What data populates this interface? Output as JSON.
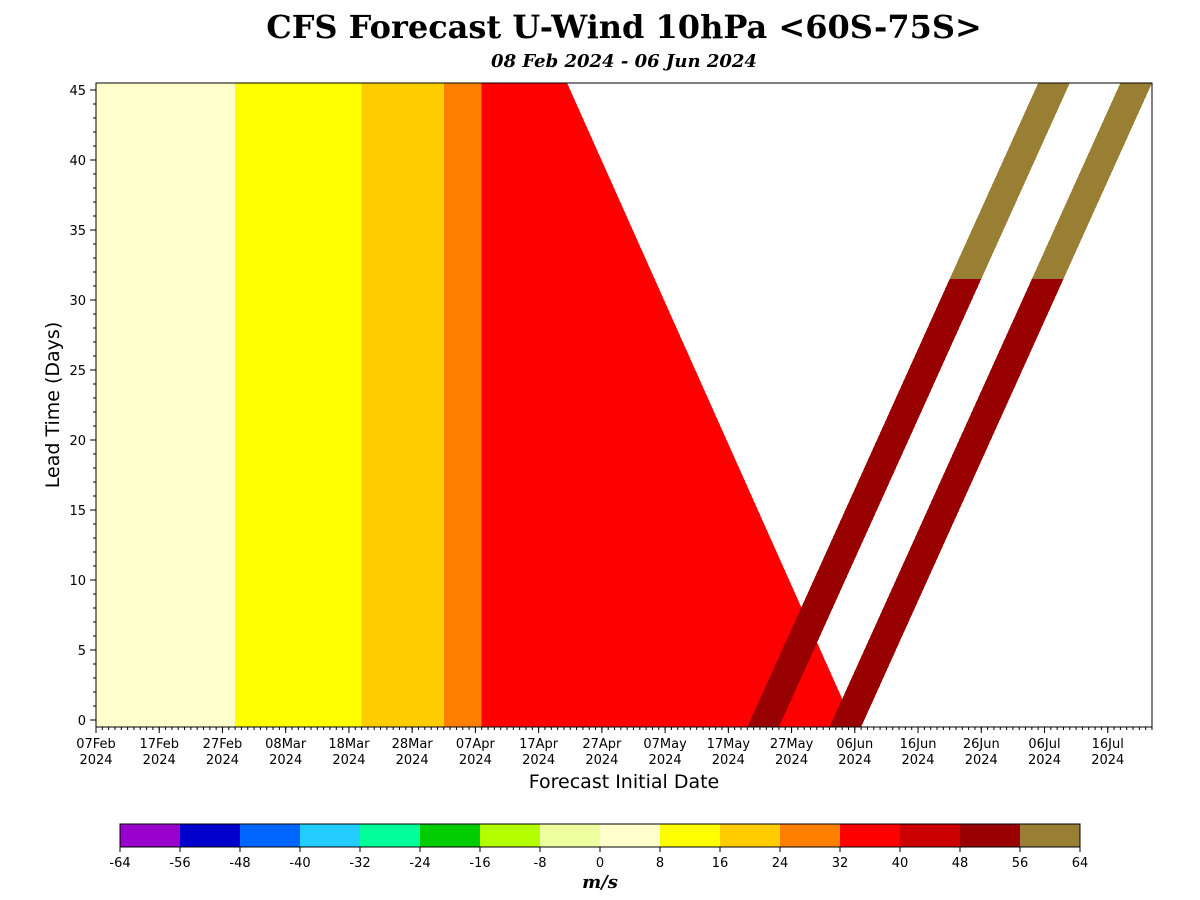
{
  "chart_data": {
    "type": "heatmap",
    "title": "CFS Forecast U-Wind 10hPa <60S-75S>",
    "subtitle": "08 Feb 2024 - 06 Jun 2024",
    "xlabel": "Forecast Initial Date",
    "ylabel": "Lead Time (Days)",
    "x_ticks": [
      {
        "date": "2024-02-07",
        "label": "07Feb\n2024"
      },
      {
        "date": "2024-02-17",
        "label": "17Feb\n2024"
      },
      {
        "date": "2024-02-27",
        "label": "27Feb\n2024"
      },
      {
        "date": "2024-03-08",
        "label": "08Mar\n2024"
      },
      {
        "date": "2024-03-18",
        "label": "18Mar\n2024"
      },
      {
        "date": "2024-03-28",
        "label": "28Mar\n2024"
      },
      {
        "date": "2024-04-07",
        "label": "07Apr\n2024"
      },
      {
        "date": "2024-04-17",
        "label": "17Apr\n2024"
      },
      {
        "date": "2024-04-27",
        "label": "27Apr\n2024"
      },
      {
        "date": "2024-05-07",
        "label": "07May\n2024"
      },
      {
        "date": "2024-05-17",
        "label": "17May\n2024"
      },
      {
        "date": "2024-05-27",
        "label": "27May\n2024"
      },
      {
        "date": "2024-06-06",
        "label": "06Jun\n2024"
      },
      {
        "date": "2024-06-16",
        "label": "16Jun\n2024"
      },
      {
        "date": "2024-06-26",
        "label": "26Jun\n2024"
      },
      {
        "date": "2024-07-06",
        "label": "06Jul\n2024"
      },
      {
        "date": "2024-07-16",
        "label": "16Jul\n2024"
      }
    ],
    "xlim": [
      "2024-02-07",
      "2024-07-23"
    ],
    "y_ticks": [
      0,
      5,
      10,
      15,
      20,
      25,
      30,
      35,
      40,
      45
    ],
    "ylim": [
      -0.5,
      45.5
    ],
    "colorbar": {
      "label": "m/s",
      "levels": [
        -64,
        -56,
        -48,
        -40,
        -32,
        -24,
        -16,
        -8,
        0,
        8,
        16,
        24,
        32,
        40,
        48,
        56,
        64
      ],
      "colors": [
        "#9900cc",
        "#0000cc",
        "#0066ff",
        "#22ccff",
        "#00ff99",
        "#00cc00",
        "#b3ff00",
        "#eeffa0",
        "#ffffcc",
        "#ffff00",
        "#ffcc00",
        "#ff8000",
        "#ff0000",
        "#cc0000",
        "#990000",
        "#997f33"
      ]
    },
    "initial_date_bands": [
      {
        "initial_date_start": "2024-02-07",
        "initial_date_end": "2024-02-14",
        "wind_ms": 4
      },
      {
        "initial_date_start": "2024-02-14",
        "initial_date_end": "2024-02-29",
        "wind_ms": 4
      },
      {
        "initial_date_start": "2024-02-29",
        "initial_date_end": "2024-03-20",
        "wind_ms": 12
      },
      {
        "initial_date_start": "2024-03-20",
        "initial_date_end": "2024-03-26",
        "wind_ms": 20
      },
      {
        "initial_date_start": "2024-03-26",
        "initial_date_end": "2024-04-02",
        "wind_ms": 20
      },
      {
        "initial_date_start": "2024-04-02",
        "initial_date_end": "2024-04-08",
        "wind_ms": 28
      },
      {
        "initial_date_start": "2024-04-08",
        "initial_date_end": "2024-04-17",
        "wind_ms": 36
      },
      {
        "initial_date_start": "2024-04-17",
        "initial_date_end": "2024-06-06",
        "wind_ms": 36
      }
    ],
    "late_season_streaks": [
      {
        "initial_date_start": "2024-05-20",
        "initial_date_end": "2024-05-25",
        "lead_start": 0,
        "lead_end": 31,
        "wind_ms": 52,
        "upper_wind_ms": 60
      },
      {
        "initial_date_start": "2024-06-02",
        "initial_date_end": "2024-06-07",
        "lead_start": 0,
        "lead_end": 31,
        "wind_ms": 52,
        "upper_wind_ms": 60
      }
    ]
  }
}
